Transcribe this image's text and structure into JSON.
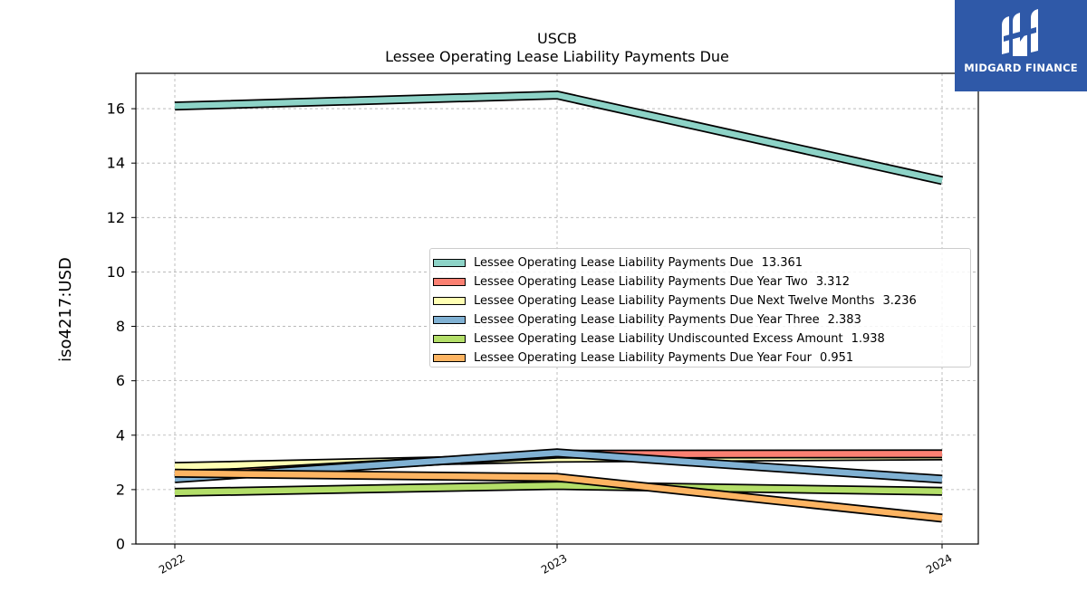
{
  "chart_data": {
    "type": "line",
    "title": "USCB",
    "subtitle": "Lessee Operating Lease Liability Payments Due",
    "xlabel": "",
    "ylabel": "iso4217:USD",
    "x": [
      "2022",
      "2023",
      "2024"
    ],
    "ylim": [
      0,
      17.3
    ],
    "yticks": [
      0,
      2,
      4,
      6,
      8,
      10,
      12,
      14,
      16
    ],
    "grid": true,
    "legend_position": "center-right",
    "series": [
      {
        "name": "Lessee Operating Lease Liability Payments Due",
        "label_value": "13.361",
        "color": "#8dd3c7",
        "values": [
          16.1,
          16.5,
          13.361
        ]
      },
      {
        "name": "Lessee Operating Lease Liability Payments Due Year Two",
        "label_value": "3.312",
        "color": "#fb8072",
        "values": [
          2.5,
          3.3,
          3.312
        ]
      },
      {
        "name": "Lessee Operating Lease Liability Payments Due Next Twelve Months",
        "label_value": "3.236",
        "color": "#ffffb3",
        "values": [
          2.85,
          3.15,
          3.236
        ]
      },
      {
        "name": "Lessee Operating Lease Liability Payments Due Year Three",
        "label_value": "2.383",
        "color": "#80b1d3",
        "values": [
          2.4,
          3.35,
          2.383
        ]
      },
      {
        "name": "Lessee Operating Lease Liability Undiscounted Excess Amount",
        "label_value": "1.938",
        "color": "#b3de69",
        "values": [
          1.9,
          2.15,
          1.938
        ]
      },
      {
        "name": "Lessee Operating Lease Liability Payments Due Year Four",
        "label_value": "0.951",
        "color": "#fdb462",
        "values": [
          2.6,
          2.45,
          0.951
        ]
      }
    ]
  },
  "branding": {
    "logo_text": "MIDGARD FINANCE",
    "logo_color": "#2f59a8"
  }
}
